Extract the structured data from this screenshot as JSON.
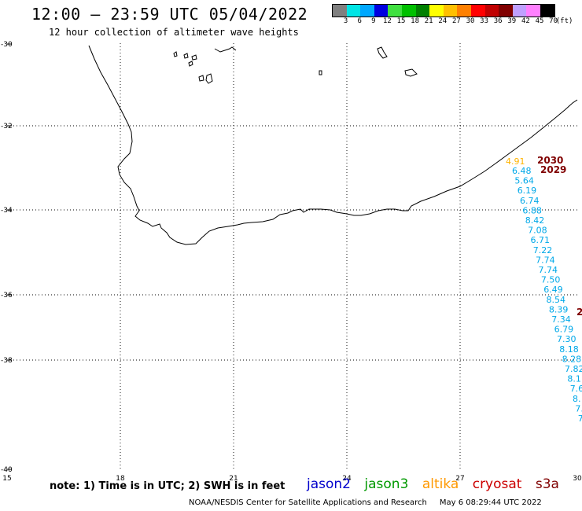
{
  "header": {
    "title": "12:00 – 23:59 UTC 05/04/2022",
    "subtitle": "12 hour collection of altimeter wave heights"
  },
  "colorbar": {
    "unit_label": "(ft)",
    "swatches": [
      {
        "label": "3",
        "color": "#808080"
      },
      {
        "label": "6",
        "color": "#00e5e5"
      },
      {
        "label": "9",
        "color": "#00a8ff"
      },
      {
        "label": "12",
        "color": "#0000e0"
      },
      {
        "label": "15",
        "color": "#40e040"
      },
      {
        "label": "18",
        "color": "#00c000"
      },
      {
        "label": "21",
        "color": "#008000"
      },
      {
        "label": "24",
        "color": "#ffff00"
      },
      {
        "label": "27",
        "color": "#ffc000"
      },
      {
        "label": "30",
        "color": "#ff8000"
      },
      {
        "label": "33",
        "color": "#ff0000"
      },
      {
        "label": "36",
        "color": "#c00000"
      },
      {
        "label": "39",
        "color": "#800000"
      },
      {
        "label": "42",
        "color": "#c0a0ff"
      },
      {
        "label": "45",
        "color": "#ff80ff"
      },
      {
        "label": "70",
        "color": "#000000"
      }
    ]
  },
  "map": {
    "lon_ticks": [
      "15",
      "18",
      "21",
      "24",
      "27",
      "30"
    ],
    "lat_ticks": [
      "-30",
      "-32",
      "-34",
      "-36",
      "-38",
      "-40"
    ],
    "colors": {
      "track": "#00a8e8",
      "altika": "#ffb400",
      "time": "#800000",
      "coast": "#000000",
      "grid": "#000000"
    },
    "time_labels": [
      "2030",
      "2029"
    ],
    "altika_label": "4.91",
    "wave_heights": [
      "6.48",
      "5.64",
      "6.19",
      "6.74",
      "6.88",
      "8.42",
      "7.08",
      "6.71",
      "7.22",
      "7.74",
      "7.74",
      "7.50",
      "6.49",
      "8.54",
      "8.39",
      "7.34",
      "6.79",
      "7.30",
      "8.18",
      "8.28",
      "7.82",
      "8.1",
      "7.6",
      "8.",
      "7.",
      "7"
    ]
  },
  "footer": {
    "note": "note: 1) Time is in UTC; 2) SWH is in feet",
    "satellites": [
      {
        "name": "jason2",
        "color": "#0000cc"
      },
      {
        "name": "jason3",
        "color": "#009900"
      },
      {
        "name": "altika",
        "color": "#ff9900"
      },
      {
        "name": "cryosat",
        "color": "#cc0000"
      },
      {
        "name": "s3a",
        "color": "#800000"
      }
    ],
    "credit": "NOAA/NESDIS Center for Satellite Applications and Research",
    "timestamp": "May  6 08:29:44 UTC 2022"
  }
}
